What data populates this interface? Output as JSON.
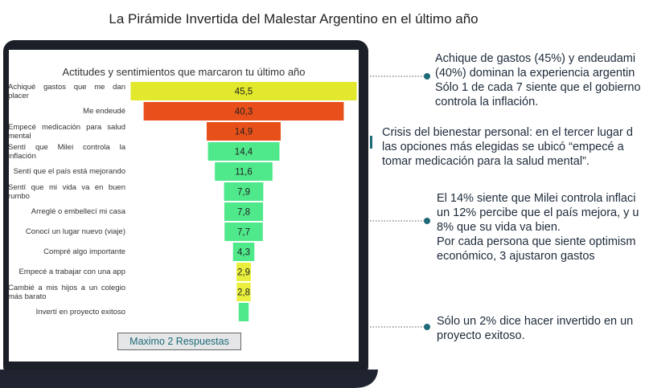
{
  "title": "La Pirámide Invertida del Malestar Argentino en el último año",
  "chart_data": {
    "type": "funnel",
    "title": "Actitudes y sentimientos que marcaron tu último año",
    "categories": [
      "Achiqué gastos que me dan placer",
      "Me endeudé",
      "Empecé medicación para salud mental",
      "Sentí que Milei controla la inflación",
      "Sentí que el país está mejorando",
      "Sentí que mi vida va en buen rumbo",
      "Arreglé o embellecí mi casa",
      "Conocí un lugar nuevo (viaje)",
      "Compré algo importante",
      "Empecé a trabajar con una app",
      "Cambié a mis hijos a un colegio más barato",
      "Invertí en proyecto exitoso"
    ],
    "values": [
      45.5,
      40.3,
      14.9,
      14.4,
      11.6,
      7.9,
      7.8,
      7.7,
      4.3,
      2.9,
      2.8,
      2
    ],
    "value_labels": [
      "45,5",
      "40,3",
      "14,9",
      "14,4",
      "11,6",
      "7,9",
      "7,8",
      "7,7",
      "4,3",
      "2,9",
      "2,8",
      null
    ],
    "colors": [
      "#e2e82c",
      "#e84f1b",
      "#e8501a",
      "#4fe88a",
      "#4fe88a",
      "#4fe88a",
      "#4fe88a",
      "#4fe88a",
      "#4fe88a",
      "#e9ef3c",
      "#e9ef3c",
      "#4fe88a"
    ]
  },
  "note": "Maximo 2 Respuestas",
  "annotations": [
    [
      "Achique de gastos (45%) y endeudami",
      "(40%) dominan la experiencia argentin",
      "Sólo 1 de cada 7 siente que el gobierno",
      "controla la inflación."
    ],
    [
      "Crisis del bienestar personal: en el tercer lugar d",
      "las opciones más elegidas se ubicó “empecé a",
      "tomar medicación para la salud mental”."
    ],
    [
      "El 14% siente que Milei controla inflaci",
      "un 12% percibe que el país mejora, y u",
      "8% que su vida va bien.",
      "Por cada persona que siente optimism",
      "económico, 3 ajustaron gastos"
    ],
    [
      "Sólo un 2% dice hacer invertido en un",
      "proyecto exitoso."
    ]
  ]
}
